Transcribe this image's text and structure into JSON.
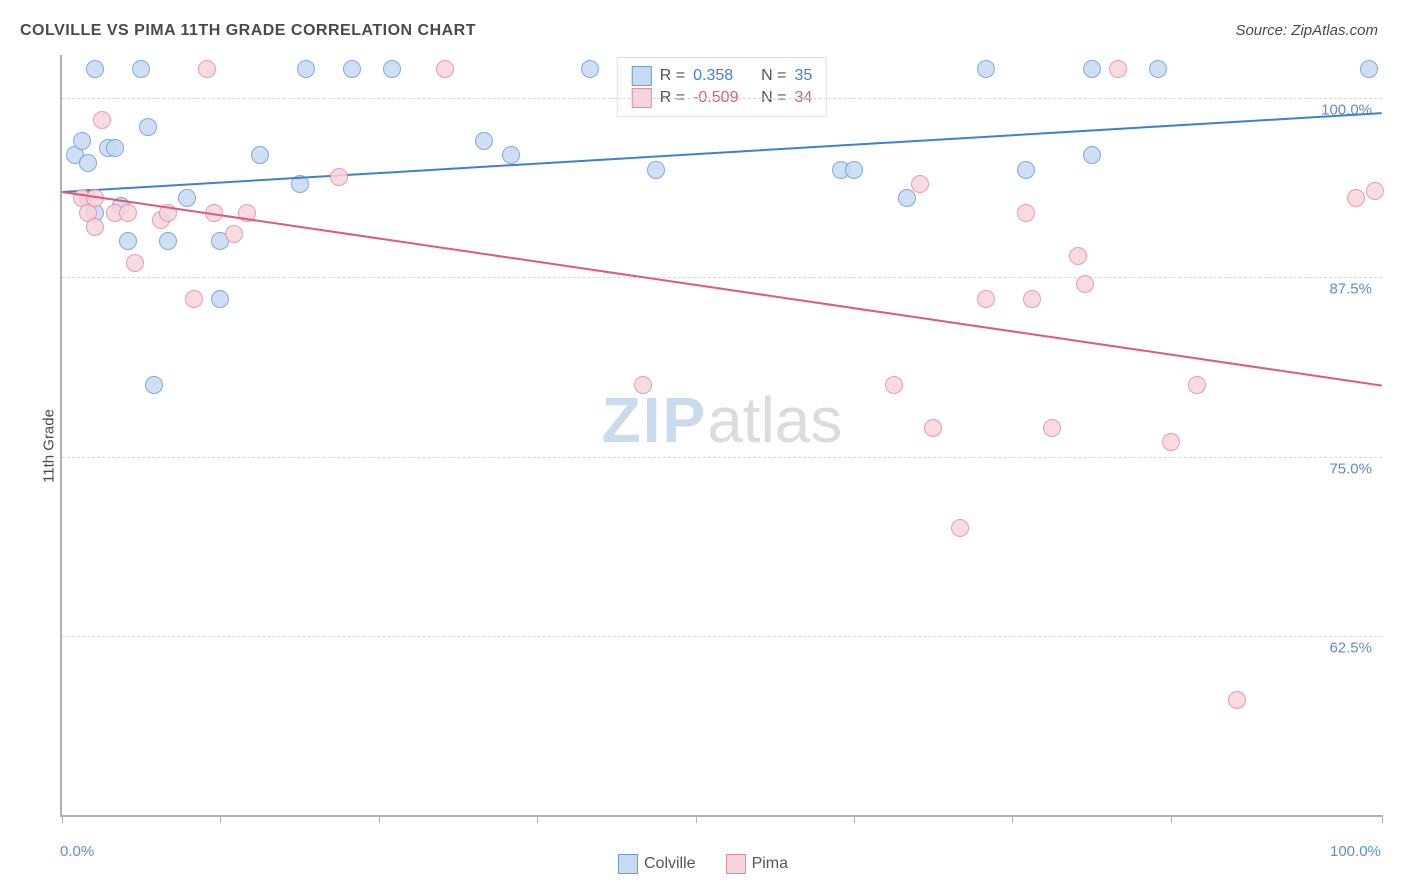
{
  "title": "COLVILLE VS PIMA 11TH GRADE CORRELATION CHART",
  "source": "Source: ZipAtlas.com",
  "ylabel": "11th Grade",
  "watermark": {
    "zip": "ZIP",
    "atlas": "atlas"
  },
  "chart": {
    "type": "scatter",
    "background_color": "#ffffff",
    "grid_color": "#d8d8d8",
    "axis_color": "#b0b0b0",
    "xlim": [
      0,
      100
    ],
    "ylim": [
      50,
      103
    ],
    "marker_size": 16,
    "marker_opacity": 0.85,
    "line_width": 2,
    "y_ticks": [
      {
        "value": 62.5,
        "label": "62.5%"
      },
      {
        "value": 75.0,
        "label": "75.0%"
      },
      {
        "value": 87.5,
        "label": "87.5%"
      },
      {
        "value": 100.0,
        "label": "100.0%"
      }
    ],
    "x_ticks": [
      0,
      12,
      24,
      36,
      48,
      60,
      72,
      84,
      100
    ],
    "x_labels": [
      {
        "value": 0,
        "label": "0.0%"
      },
      {
        "value": 100,
        "label": "100.0%"
      }
    ],
    "legend_top": [
      {
        "swatch_fill": "#c6daf2",
        "swatch_border": "#6b9bd8",
        "r_label": "R =",
        "r_val": "0.358",
        "n_label": "N =",
        "n_val": "35",
        "val_color": "#3f7fd4"
      },
      {
        "swatch_fill": "#f7d4dc",
        "swatch_border": "#e28ca0",
        "r_label": "R =",
        "r_val": "-0.509",
        "n_label": "N =",
        "n_val": "34",
        "val_color": "#e05a7a"
      }
    ],
    "legend_bottom": [
      {
        "swatch_fill": "#c6daf2",
        "swatch_border": "#6b9bd8",
        "label": "Colville"
      },
      {
        "swatch_fill": "#f7d4dc",
        "swatch_border": "#e28ca0",
        "label": "Pima"
      }
    ],
    "series": [
      {
        "name": "Colville",
        "fill": "#c6daf2",
        "border": "#6b9bd8",
        "line_color": "#3f7fd4",
        "trend": {
          "x1": 0,
          "y1": 93.5,
          "x2": 100,
          "y2": 99.0
        },
        "points": [
          {
            "x": 1,
            "y": 96
          },
          {
            "x": 1.5,
            "y": 97
          },
          {
            "x": 2,
            "y": 95.5
          },
          {
            "x": 2,
            "y": 93
          },
          {
            "x": 2.5,
            "y": 92
          },
          {
            "x": 2.5,
            "y": 102
          },
          {
            "x": 3.5,
            "y": 96.5
          },
          {
            "x": 4,
            "y": 96.5
          },
          {
            "x": 4.5,
            "y": 92.5
          },
          {
            "x": 5,
            "y": 90
          },
          {
            "x": 6,
            "y": 102
          },
          {
            "x": 6.5,
            "y": 98
          },
          {
            "x": 7,
            "y": 80
          },
          {
            "x": 8,
            "y": 90
          },
          {
            "x": 9.5,
            "y": 93
          },
          {
            "x": 12,
            "y": 86
          },
          {
            "x": 12,
            "y": 90
          },
          {
            "x": 15,
            "y": 96
          },
          {
            "x": 18,
            "y": 94
          },
          {
            "x": 18.5,
            "y": 102
          },
          {
            "x": 22,
            "y": 102
          },
          {
            "x": 25,
            "y": 102
          },
          {
            "x": 32,
            "y": 97
          },
          {
            "x": 34,
            "y": 96
          },
          {
            "x": 40,
            "y": 102
          },
          {
            "x": 45,
            "y": 95
          },
          {
            "x": 59,
            "y": 95
          },
          {
            "x": 60,
            "y": 95
          },
          {
            "x": 64,
            "y": 93
          },
          {
            "x": 70,
            "y": 102
          },
          {
            "x": 73,
            "y": 95
          },
          {
            "x": 78,
            "y": 96
          },
          {
            "x": 78,
            "y": 102
          },
          {
            "x": 83,
            "y": 102
          },
          {
            "x": 99,
            "y": 102
          }
        ]
      },
      {
        "name": "Pima",
        "fill": "#f7d4dc",
        "border": "#e28ca0",
        "line_color": "#e05a7a",
        "trend": {
          "x1": 0,
          "y1": 93.5,
          "x2": 100,
          "y2": 80.0
        },
        "points": [
          {
            "x": 1.5,
            "y": 93
          },
          {
            "x": 2,
            "y": 92
          },
          {
            "x": 2.5,
            "y": 91
          },
          {
            "x": 2.5,
            "y": 93
          },
          {
            "x": 3,
            "y": 98.5
          },
          {
            "x": 4,
            "y": 92
          },
          {
            "x": 5,
            "y": 92
          },
          {
            "x": 5.5,
            "y": 88.5
          },
          {
            "x": 7.5,
            "y": 91.5
          },
          {
            "x": 8,
            "y": 92
          },
          {
            "x": 10,
            "y": 86
          },
          {
            "x": 11,
            "y": 102
          },
          {
            "x": 11.5,
            "y": 92
          },
          {
            "x": 13,
            "y": 90.5
          },
          {
            "x": 14,
            "y": 92
          },
          {
            "x": 21,
            "y": 94.5
          },
          {
            "x": 29,
            "y": 102
          },
          {
            "x": 44,
            "y": 80
          },
          {
            "x": 63,
            "y": 80
          },
          {
            "x": 65,
            "y": 94
          },
          {
            "x": 66,
            "y": 77
          },
          {
            "x": 68,
            "y": 70
          },
          {
            "x": 70,
            "y": 86
          },
          {
            "x": 73,
            "y": 92
          },
          {
            "x": 73.5,
            "y": 86
          },
          {
            "x": 75,
            "y": 77
          },
          {
            "x": 77,
            "y": 89
          },
          {
            "x": 77.5,
            "y": 87
          },
          {
            "x": 80,
            "y": 102
          },
          {
            "x": 84,
            "y": 76
          },
          {
            "x": 86,
            "y": 80
          },
          {
            "x": 89,
            "y": 58
          },
          {
            "x": 98,
            "y": 93
          },
          {
            "x": 99.5,
            "y": 93.5
          }
        ]
      }
    ]
  }
}
